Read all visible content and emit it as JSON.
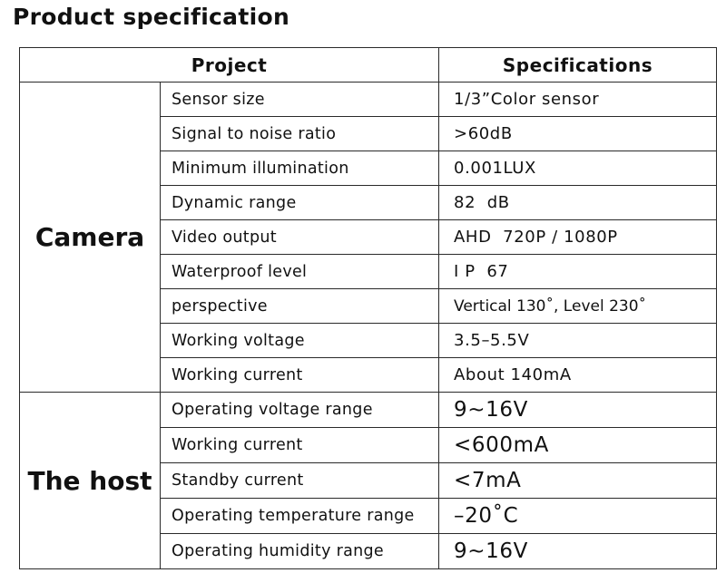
{
  "title": "Product specification",
  "table": {
    "headers": [
      "Project",
      "Specifications"
    ],
    "groups": [
      {
        "name": "Camera",
        "rows": [
          {
            "item": "Sensor size",
            "value": "1/3”Color sensor"
          },
          {
            "item": "Signal to noise ratio",
            "value": ">60dB"
          },
          {
            "item": "Minimum illumination",
            "value": "0.001LUX"
          },
          {
            "item": "Dynamic range",
            "value": "82  dB"
          },
          {
            "item": "Video output",
            "value": "AHD  720P / 1080P"
          },
          {
            "item": "Waterproof level",
            "value": "I P  67"
          },
          {
            "item": "perspective",
            "value": "Vertical 130˚, Level 230˚"
          },
          {
            "item": "Working voltage",
            "value": "3.5–5.5V"
          },
          {
            "item": "Working current",
            "value": "About 140mA"
          }
        ]
      },
      {
        "name": "The host",
        "rows": [
          {
            "item": "Operating voltage range",
            "value": "9~16V"
          },
          {
            "item": "Working current",
            "value": "<600mA"
          },
          {
            "item": "Standby current",
            "value": "<7mA"
          },
          {
            "item": "Operating temperature range",
            "value": "–20˚C"
          },
          {
            "item": "Operating humidity range",
            "value": "9~16V"
          }
        ]
      }
    ]
  }
}
